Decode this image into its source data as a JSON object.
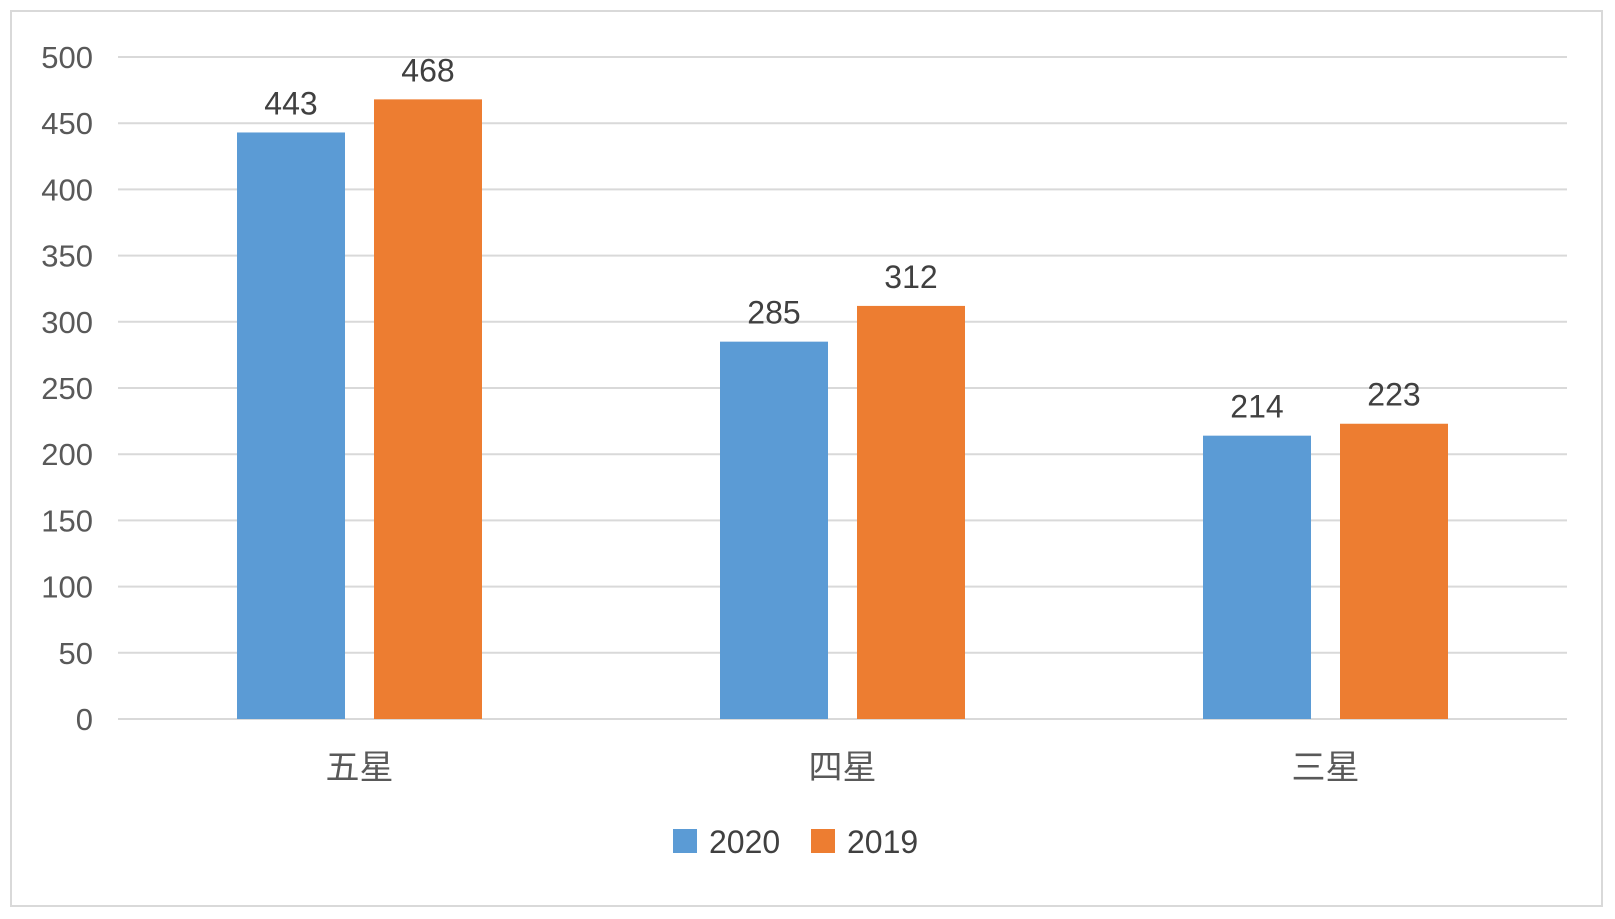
{
  "chart_data": {
    "type": "bar",
    "title": "",
    "xlabel": "",
    "ylabel": "",
    "categories": [
      "五星",
      "四星",
      "三星"
    ],
    "series": [
      {
        "name": "2020",
        "color": "#5b9bd5",
        "values": [
          443,
          285,
          214
        ]
      },
      {
        "name": "2019",
        "color": "#ed7d31",
        "values": [
          468,
          312,
          223
        ]
      }
    ],
    "ylim": [
      0,
      500
    ],
    "yticks": [
      0,
      50,
      100,
      150,
      200,
      250,
      300,
      350,
      400,
      450,
      500
    ],
    "grid": true,
    "gridline_color": "#d9d9d9",
    "data_labels": true,
    "legend_position": "bottom"
  }
}
